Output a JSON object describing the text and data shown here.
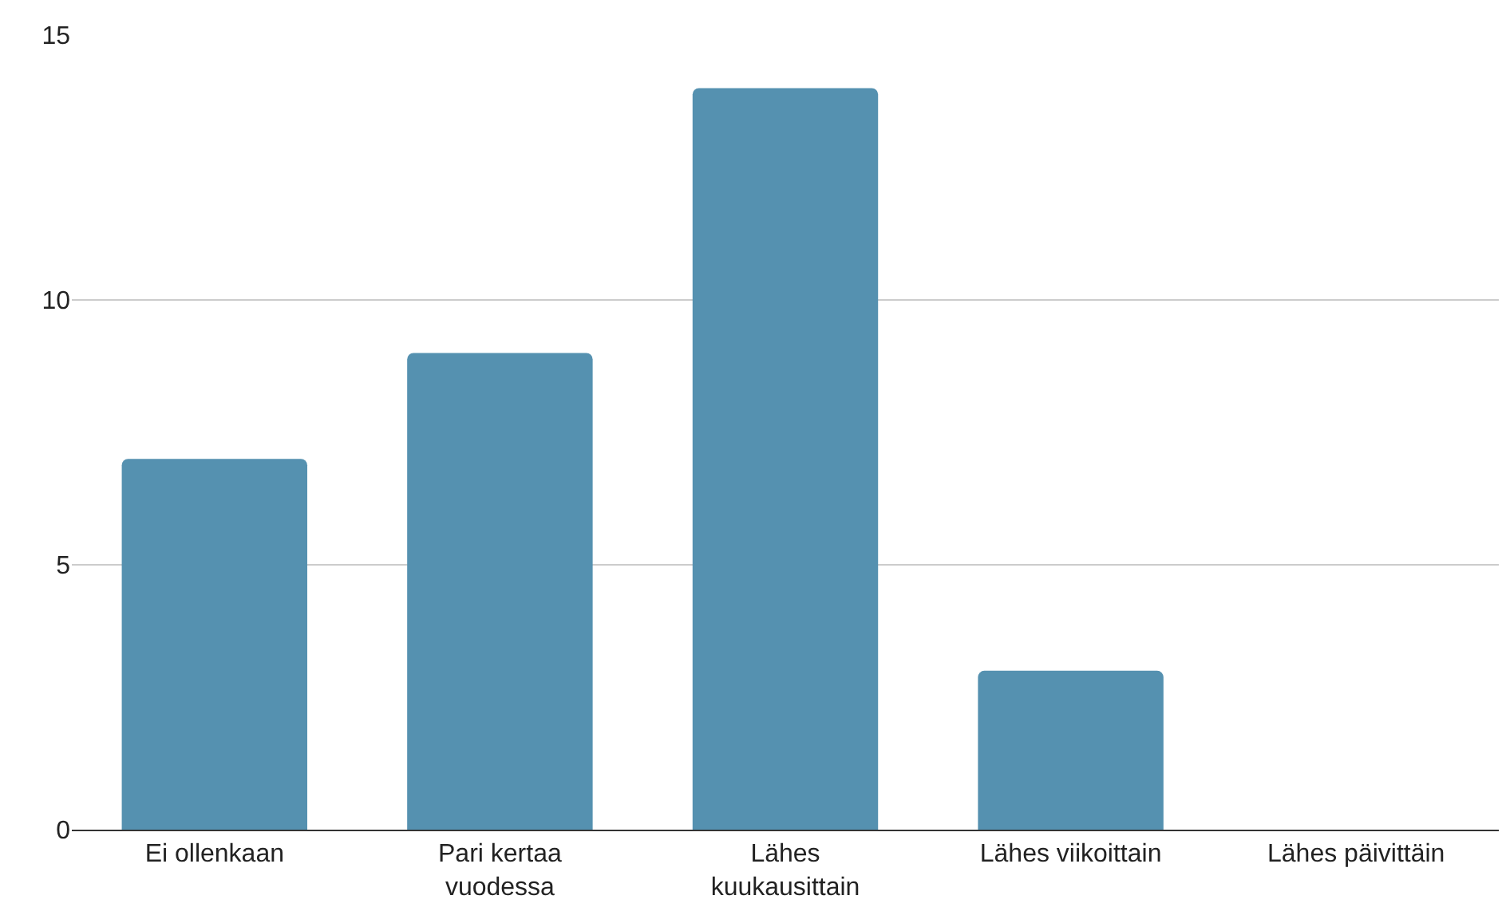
{
  "chart_data": {
    "type": "bar",
    "categories": [
      "Ei ollenkaan",
      "Pari kertaa vuodessa",
      "Lähes kuukausittain",
      "Lähes viikoittain",
      "Lähes päivittäin"
    ],
    "values": [
      7,
      9,
      14,
      3,
      0
    ],
    "color": "#5591b0",
    "ylim": [
      0,
      15
    ],
    "yticks": [
      0,
      5,
      10,
      15
    ],
    "grid": "y"
  }
}
